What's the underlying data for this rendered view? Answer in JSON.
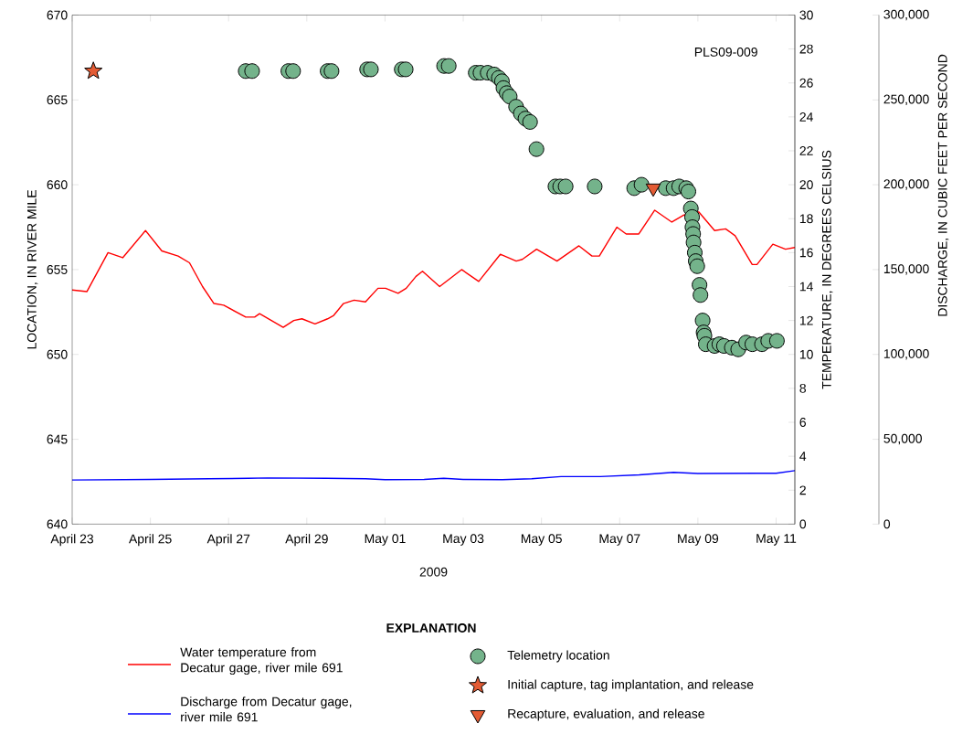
{
  "chart_data": {
    "type": "scatter",
    "xlabel": "2009",
    "ylabel": "LOCATION, IN RIVER MILE",
    "y2label": "TEMPERATURE, IN DEGREES CELSIUS",
    "y3label": "DISCHARGE, IN CUBIC FEET PER SECOND",
    "legend_title": "EXPLANATION",
    "legend": "bottom",
    "annotations": [
      "PLS09-009"
    ],
    "xlim": [
      "2009-04-23T00:00",
      "2009-05-11T11:30"
    ],
    "xticks": [
      {
        "value": "2009-04-23",
        "label": "April 23"
      },
      {
        "value": "2009-04-25",
        "label": "April 25"
      },
      {
        "value": "2009-04-27",
        "label": "April 27"
      },
      {
        "value": "2009-04-29",
        "label": "April 29"
      },
      {
        "value": "2009-05-01",
        "label": "May 01"
      },
      {
        "value": "2009-05-03",
        "label": "May 03"
      },
      {
        "value": "2009-05-05",
        "label": "May 05"
      },
      {
        "value": "2009-05-07",
        "label": "May 07"
      },
      {
        "value": "2009-05-09",
        "label": "May 09"
      },
      {
        "value": "2009-05-11",
        "label": "May 11"
      }
    ],
    "ylim": [
      640,
      670
    ],
    "yticks": [
      640,
      645,
      650,
      655,
      660,
      665,
      670
    ],
    "y2lim": [
      0,
      30
    ],
    "y2ticks": [
      0,
      2,
      4,
      6,
      8,
      10,
      12,
      14,
      16,
      18,
      20,
      22,
      24,
      26,
      28,
      30
    ],
    "y3lim": [
      0,
      300000
    ],
    "y3ticks": [
      0,
      {
        "value": 50000,
        "label": "50,000"
      },
      {
        "value": 100000,
        "label": "100,000"
      },
      {
        "value": 150000,
        "label": "150,000"
      },
      {
        "value": 200000,
        "label": "200,000"
      },
      {
        "value": 250000,
        "label": "250,000"
      },
      {
        "value": 300000,
        "label": "300,000"
      }
    ],
    "series": [
      {
        "name": "Water temperature from Decatur gage, river mile 691",
        "type": "line",
        "axis": "y2",
        "color": "#ff0000",
        "x": [
          "2009-04-23T00:00",
          "2009-04-23T09:00",
          "2009-04-23T22:00",
          "2009-04-24T07:00",
          "2009-04-24T21:00",
          "2009-04-25T07:00",
          "2009-04-25T17:00",
          "2009-04-26T00:00",
          "2009-04-26T08:00",
          "2009-04-26T15:00",
          "2009-04-26T21:00",
          "2009-04-27T10:30",
          "2009-04-27T16:00",
          "2009-04-27T19:00",
          "2009-04-28T09:30",
          "2009-04-28T16:00",
          "2009-04-28T21:00",
          "2009-04-29T05:00",
          "2009-04-29T12:45",
          "2009-04-29T16:30",
          "2009-04-29T22:30",
          "2009-04-30T05:00",
          "2009-04-30T12:00",
          "2009-04-30T19:40",
          "2009-05-01T00:20",
          "2009-05-01T08:00",
          "2009-05-01T13:00",
          "2009-05-01T19:00",
          "2009-05-01T23:00",
          "2009-05-02T09:30",
          "2009-05-02T23:00",
          "2009-05-03T09:30",
          "2009-05-03T22:45",
          "2009-05-04T08:30",
          "2009-05-04T12:15",
          "2009-05-04T21:00",
          "2009-05-05T09:30",
          "2009-05-05T23:00",
          "2009-05-06T07:00",
          "2009-05-06T11:30",
          "2009-05-06T22:15",
          "2009-05-07T04:00",
          "2009-05-07T11:45",
          "2009-05-07T21:30",
          "2009-05-08T08:00",
          "2009-05-08T15:00",
          "2009-05-09T00:30",
          "2009-05-09T10:15",
          "2009-05-09T17:00",
          "2009-05-09T22:50",
          "2009-05-10T09:20",
          "2009-05-10T12:15",
          "2009-05-10T22:00",
          "2009-05-11T05:45",
          "2009-05-11T11:30"
        ],
        "values": [
          13.8,
          13.7,
          16.0,
          15.7,
          17.3,
          16.1,
          15.8,
          15.4,
          14.0,
          13.0,
          12.9,
          12.2,
          12.2,
          12.4,
          11.6,
          12.0,
          12.1,
          11.8,
          12.1,
          12.3,
          13.0,
          13.2,
          13.1,
          13.9,
          13.9,
          13.6,
          13.9,
          14.6,
          14.9,
          14.0,
          15.0,
          14.3,
          15.9,
          15.5,
          15.6,
          16.2,
          15.5,
          16.4,
          15.8,
          15.8,
          17.5,
          17.1,
          17.1,
          18.5,
          17.8,
          18.2,
          18.4,
          17.3,
          17.4,
          17.0,
          15.3,
          15.3,
          16.5,
          16.2,
          16.3
        ]
      },
      {
        "name": "Discharge from Decatur gage, river mile 691",
        "type": "line",
        "axis": "y3",
        "color": "#0000ff",
        "x": [
          "2009-04-23T00:00",
          "2009-04-25T00:00",
          "2009-04-26T12:00",
          "2009-04-27T12:00",
          "2009-04-28T00:00",
          "2009-04-29T12:00",
          "2009-04-30T12:00",
          "2009-05-01T00:00",
          "2009-05-02T00:00",
          "2009-05-02T12:00",
          "2009-05-03T00:00",
          "2009-05-04T00:00",
          "2009-05-04T18:00",
          "2009-05-05T12:00",
          "2009-05-06T12:00",
          "2009-05-07T12:00",
          "2009-05-08T09:00",
          "2009-05-09T00:00",
          "2009-05-10T12:00",
          "2009-05-11T00:00",
          "2009-05-11T11:30"
        ],
        "values": [
          26000,
          26300,
          26700,
          27000,
          27200,
          27000,
          26700,
          26200,
          26300,
          27000,
          26300,
          26200,
          26700,
          28000,
          28000,
          29000,
          30500,
          29800,
          30000,
          30000,
          31500
        ]
      },
      {
        "name": "Telemetry location",
        "marker": "circle",
        "color": "#74b38b",
        "x": [
          "2009-04-27T10:30",
          "2009-04-27T14:25",
          "2009-04-28T12:40",
          "2009-04-28T15:35",
          "2009-04-29T12:45",
          "2009-04-29T15:10",
          "2009-04-30T13:00",
          "2009-04-30T15:20",
          "2009-05-01T10:15",
          "2009-05-01T12:40",
          "2009-05-02T12:15",
          "2009-05-02T15:05",
          "2009-05-03T07:40",
          "2009-05-03T10:35",
          "2009-05-03T15:00",
          "2009-05-03T19:00",
          "2009-05-03T21:50",
          "2009-05-03T23:45",
          "2009-05-04T00:40",
          "2009-05-04T02:40",
          "2009-05-04T04:30",
          "2009-05-04T08:25",
          "2009-05-04T11:20",
          "2009-05-04T14:10",
          "2009-05-04T17:00",
          "2009-05-04T20:55",
          "2009-05-05T08:35",
          "2009-05-05T11:30",
          "2009-05-05T14:50",
          "2009-05-06T08:40",
          "2009-05-07T08:55",
          "2009-05-07T13:25",
          "2009-05-08T04:15",
          "2009-05-08T09:05",
          "2009-05-08T12:30",
          "2009-05-08T16:50",
          "2009-05-08T18:10",
          "2009-05-08T19:40",
          "2009-05-08T20:25",
          "2009-05-08T20:40",
          "2009-05-08T21:05",
          "2009-05-08T21:20",
          "2009-05-08T22:05",
          "2009-05-08T22:40",
          "2009-05-08T23:35",
          "2009-05-09T01:00",
          "2009-05-09T01:35",
          "2009-05-09T02:55",
          "2009-05-09T03:30",
          "2009-05-09T04:00",
          "2009-05-09T04:50",
          "2009-05-09T10:15",
          "2009-05-09T13:10",
          "2009-05-09T16:00",
          "2009-05-09T20:50",
          "2009-05-10T00:45",
          "2009-05-10T05:35",
          "2009-05-10T09:25",
          "2009-05-10T15:20",
          "2009-05-10T19:10",
          "2009-05-11T00:30"
        ],
        "values": [
          666.7,
          666.7,
          666.7,
          666.7,
          666.7,
          666.7,
          666.8,
          666.8,
          666.8,
          666.8,
          667.0,
          667.0,
          666.6,
          666.6,
          666.6,
          666.5,
          666.3,
          666.1,
          665.7,
          665.4,
          665.2,
          664.6,
          664.2,
          663.9,
          663.7,
          662.1,
          659.9,
          659.9,
          659.9,
          659.9,
          659.8,
          660.0,
          659.8,
          659.8,
          659.9,
          659.8,
          659.6,
          658.6,
          658.1,
          657.5,
          657.1,
          656.6,
          656.0,
          655.5,
          655.2,
          654.1,
          653.5,
          652.0,
          651.3,
          651.1,
          650.6,
          650.5,
          650.6,
          650.5,
          650.4,
          650.3,
          650.7,
          650.6,
          650.6,
          650.8,
          650.8
        ]
      },
      {
        "name": "Initial capture, tag implantation, and release",
        "marker": "star",
        "color": "#e35b34",
        "x": [
          "2009-04-23T13:00"
        ],
        "values": [
          666.7
        ]
      },
      {
        "name": "Recapture, evaluation, and release",
        "marker": "triangle",
        "color": "#e35b34",
        "x": [
          "2009-05-07T20:35"
        ],
        "values": [
          659.8
        ]
      }
    ]
  }
}
